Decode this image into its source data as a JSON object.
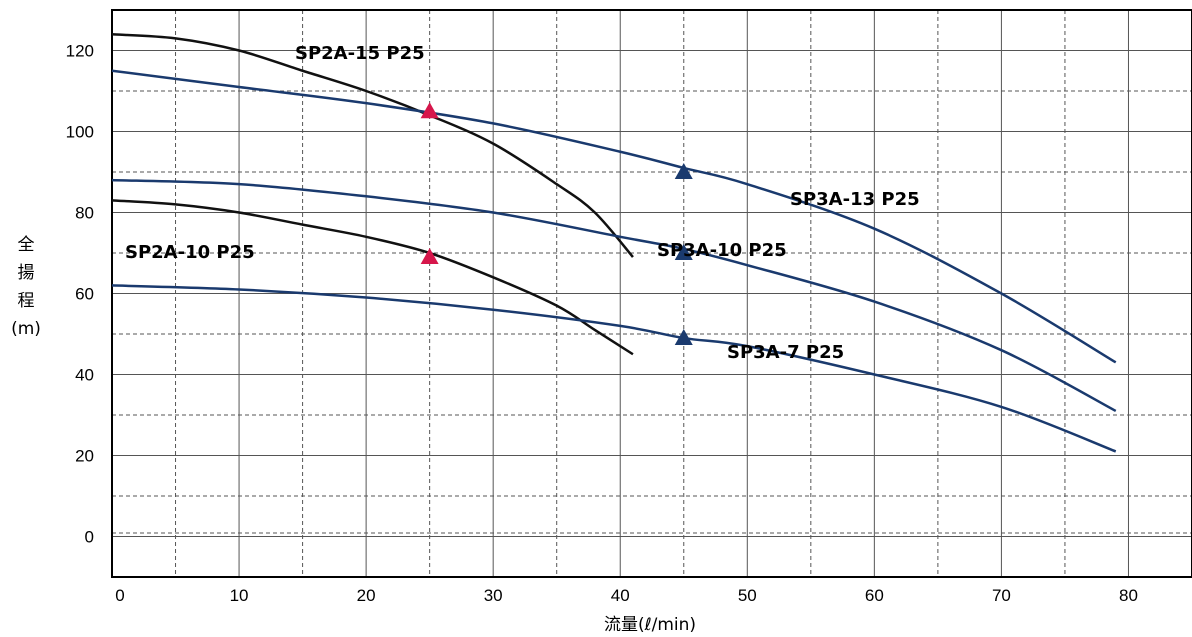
{
  "chart_data": {
    "type": "line",
    "title": "",
    "xlabel": "流量(ℓ/min)",
    "ylabel": [
      "全",
      "揚",
      "程",
      "(m)"
    ],
    "xlim": [
      0,
      85
    ],
    "ylim": [
      -10,
      130
    ],
    "xticks": [
      0,
      10,
      20,
      30,
      40,
      50,
      60,
      70,
      80
    ],
    "yticks": [
      0,
      20,
      40,
      60,
      80,
      100,
      120
    ],
    "grid": true,
    "series": [
      {
        "name": "SP2A-15 P25",
        "color": "#111111",
        "x": [
          0,
          5,
          10,
          15,
          20,
          25,
          30,
          35,
          38,
          41
        ],
        "y": [
          124,
          123,
          120,
          115,
          110,
          104,
          97,
          87,
          80,
          69
        ],
        "marker": {
          "x": 25,
          "y": 105,
          "color": "#d6164b"
        }
      },
      {
        "name": "SP2A-10 P25",
        "color": "#111111",
        "x": [
          0,
          5,
          10,
          15,
          20,
          25,
          30,
          35,
          38,
          41
        ],
        "y": [
          83,
          82,
          80,
          77,
          74,
          70,
          64,
          57,
          51,
          45
        ],
        "marker": {
          "x": 25,
          "y": 69,
          "color": "#d6164b"
        }
      },
      {
        "name": "SP3A-13 P25",
        "color": "#1a3a6e",
        "x": [
          0,
          10,
          20,
          30,
          40,
          45,
          50,
          60,
          70,
          79
        ],
        "y": [
          115,
          111,
          107,
          102,
          95,
          91,
          87,
          76,
          60,
          43
        ],
        "marker": {
          "x": 45,
          "y": 90,
          "color": "#1a3a6e"
        }
      },
      {
        "name": "SP3A-10 P25",
        "color": "#1a3a6e",
        "x": [
          0,
          10,
          20,
          30,
          40,
          45,
          50,
          60,
          70,
          79
        ],
        "y": [
          88,
          87,
          84,
          80,
          74,
          71,
          67,
          58,
          46,
          31
        ],
        "marker": {
          "x": 45,
          "y": 70,
          "color": "#1a3a6e"
        }
      },
      {
        "name": "SP3A-7 P25",
        "color": "#1a3a6e",
        "x": [
          0,
          10,
          20,
          30,
          40,
          45,
          50,
          60,
          70,
          79
        ],
        "y": [
          62,
          61,
          59,
          56,
          52,
          49,
          47,
          40,
          32,
          21
        ],
        "marker": {
          "x": 45,
          "y": 49,
          "color": "#1a3a6e"
        }
      }
    ]
  }
}
